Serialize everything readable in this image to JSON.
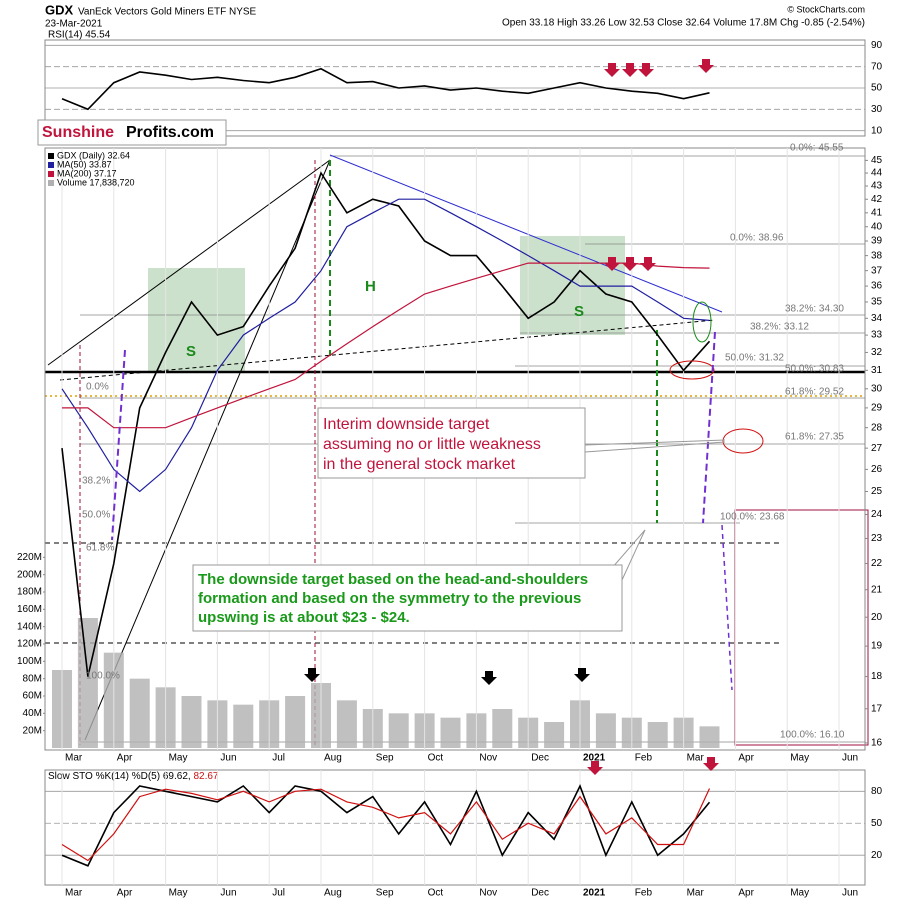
{
  "header": {
    "symbol": "GDX",
    "name": "VanEck Vectors Gold Miners ETF  NYSE",
    "date": "23-Mar-2021",
    "quote": "Open 33.18 High 33.26 Low 32.53 Close 32.64 Volume 17.8M Chg -0.85 (-2.54%)",
    "source": "© StockCharts.com",
    "logo_1": "Sunshine",
    "logo_2": "Profits.com"
  },
  "chart_data": [
    {
      "type": "line",
      "title": "RSI(14) 45.54",
      "categories": [
        "Mar",
        null,
        "Apr",
        null,
        "May",
        null,
        "Jun",
        null,
        "Jul",
        null,
        "Aug",
        null,
        "Sep",
        null,
        "Oct",
        null,
        "Nov",
        null,
        "Dec",
        null,
        "2021",
        null,
        "Feb",
        null,
        "Mar",
        null,
        "Apr",
        null,
        "May",
        null,
        "Jun",
        null
      ],
      "values": [
        40,
        30,
        55,
        65,
        62,
        58,
        60,
        57,
        55,
        60,
        68,
        55,
        56,
        50,
        52,
        48,
        50,
        47,
        45,
        50,
        55,
        50,
        47,
        45,
        40,
        45.54,
        null,
        null,
        null,
        null,
        null,
        null
      ],
      "color": "#000000",
      "ylim": [
        5,
        95
      ],
      "yticks": [
        10,
        30,
        50,
        70,
        90
      ],
      "grid": true
    },
    {
      "type": "line",
      "categories": [
        "Mar",
        null,
        "Apr",
        null,
        "May",
        null,
        "Jun",
        null,
        "Jul",
        null,
        "Aug",
        null,
        "Sep",
        null,
        "Oct",
        null,
        "Nov",
        null,
        "Dec",
        null,
        "2021",
        null,
        "Feb",
        null,
        "Mar",
        null,
        "Apr",
        null,
        "May",
        null,
        "Jun",
        null
      ],
      "series": [
        {
          "name": "GDX (Daily) 32.64",
          "color": "#000000",
          "values": [
            27,
            18,
            22,
            29,
            32,
            35,
            33,
            33.5,
            36,
            38.5,
            44,
            41,
            42,
            41.5,
            39,
            38,
            38,
            36,
            34,
            35,
            37,
            35.5,
            35,
            33,
            31,
            32.64,
            null,
            null,
            null,
            null,
            null,
            null
          ]
        },
        {
          "name": "MA(50) 33.87",
          "color": "#1f1fa0",
          "values": [
            30,
            28,
            26,
            25,
            26,
            28,
            31,
            33,
            34,
            35,
            37,
            40,
            41,
            42,
            42,
            41,
            40,
            39,
            38,
            37,
            36,
            36,
            36,
            35,
            34,
            33.87,
            null,
            null,
            null,
            null,
            null,
            null
          ]
        },
        {
          "name": "MA(200) 37.17",
          "color": "#c0143c",
          "values": [
            29,
            29,
            28,
            28,
            28,
            28.5,
            29,
            29.5,
            30,
            30.5,
            31.5,
            32.5,
            33.5,
            34.5,
            35.5,
            36,
            36.5,
            37,
            37.5,
            37.5,
            37.5,
            37.5,
            37.5,
            37.3,
            37.2,
            37.17,
            null,
            null,
            null,
            null,
            null,
            null
          ]
        },
        {
          "name": "Volume 17,838,720",
          "color": "#b0b0b0",
          "type": "bar",
          "axis": "y2",
          "values": [
            90,
            150,
            110,
            80,
            70,
            60,
            55,
            50,
            55,
            60,
            75,
            55,
            45,
            40,
            40,
            35,
            40,
            45,
            35,
            30,
            55,
            40,
            35,
            30,
            35,
            25,
            null,
            null,
            null,
            null,
            null,
            null
          ]
        }
      ],
      "log_scale": true,
      "ylim": [
        15.8,
        46
      ],
      "yticks": [
        16,
        17,
        18,
        19,
        20,
        21,
        22,
        23,
        24,
        25,
        26,
        27,
        28,
        29,
        30,
        31,
        32,
        33,
        34,
        35,
        36,
        37,
        38,
        39,
        40,
        41,
        42,
        43,
        44,
        45
      ],
      "y2lim": [
        0,
        240
      ],
      "y2ticks": [
        {
          "value": 20,
          "label": "20M"
        },
        {
          "value": 40,
          "label": "40M"
        },
        {
          "value": 60,
          "label": "60M"
        },
        {
          "value": 80,
          "label": "80M"
        },
        {
          "value": 100,
          "label": "100M"
        },
        {
          "value": 120,
          "label": "120M"
        },
        {
          "value": 140,
          "label": "140M"
        },
        {
          "value": 160,
          "label": "160M"
        },
        {
          "value": 180,
          "label": "180M"
        },
        {
          "value": 200,
          "label": "200M"
        },
        {
          "value": 220,
          "label": "220M"
        }
      ],
      "grid": false,
      "fib_labels": [
        "0.0%: 45.55",
        "0.0%: 38.96",
        "38.2%: 34.30",
        "38.2%: 33.12",
        "50.0%: 31.32",
        "50.0%: 30.83",
        "61.8%: 29.52",
        "61.8%: 27.35",
        "100.0%: 23.68",
        "100.0%: 16.10",
        "0.0%",
        "38.2%",
        "50.0%",
        "61.8%",
        "100.0%"
      ],
      "annotations": [
        "Interim downside target",
        "assuming no or little weakness",
        "in the general stock market",
        "The downside target based on the head-and-shoulders",
        "formation and based on the symmetry to the previous",
        "upswing is at about $23 - $24.",
        "H",
        "S",
        "S"
      ]
    },
    {
      "type": "line",
      "title": "Slow STO %K(14) %D(5)",
      "categories": [
        "Mar",
        null,
        "Apr",
        null,
        "May",
        null,
        "Jun",
        null,
        "Jul",
        null,
        "Aug",
        null,
        "Sep",
        null,
        "Oct",
        null,
        "Nov",
        null,
        "Dec",
        null,
        "2021",
        null,
        "Feb",
        null,
        "Mar",
        null,
        "Apr",
        null,
        "May",
        null,
        "Jun",
        null
      ],
      "series": [
        {
          "name": "69.62,",
          "color": "#000000",
          "values": [
            20,
            10,
            60,
            85,
            80,
            75,
            70,
            85,
            60,
            85,
            80,
            60,
            75,
            40,
            70,
            30,
            80,
            20,
            60,
            35,
            85,
            20,
            70,
            20,
            40,
            69.62,
            null,
            null,
            null,
            null,
            null,
            null
          ]
        },
        {
          "name": "82.67",
          "color": "#d01010",
          "values": [
            30,
            15,
            40,
            75,
            82,
            78,
            72,
            80,
            70,
            80,
            82,
            70,
            65,
            55,
            60,
            40,
            70,
            35,
            50,
            40,
            75,
            40,
            55,
            30,
            30,
            82.67,
            null,
            null,
            null,
            null,
            null,
            null
          ]
        }
      ],
      "ylim": [
        -8,
        100
      ],
      "yticks": [
        20,
        50,
        80
      ],
      "grid": true
    }
  ]
}
